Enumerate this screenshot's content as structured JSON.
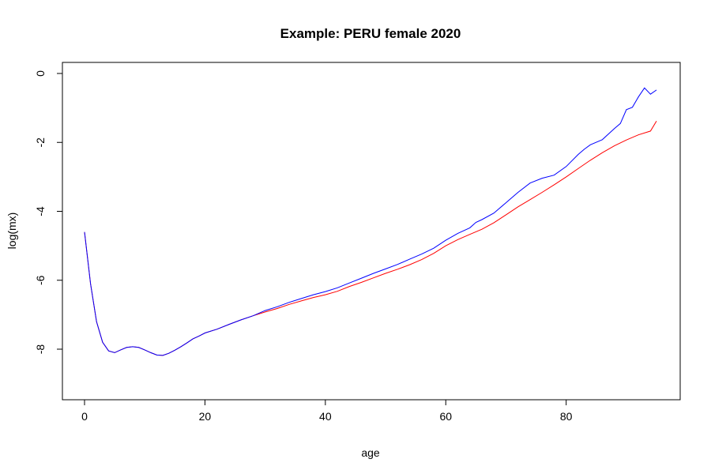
{
  "chart_data": {
    "type": "line",
    "title": "Example: PERU female 2020",
    "xlabel": "age",
    "ylabel": "log(mx)",
    "xlim": [
      0,
      95
    ],
    "ylim": [
      -9.3,
      0.3
    ],
    "xticks": [
      0,
      20,
      40,
      60,
      80
    ],
    "xtick_labels": [
      "0",
      "20",
      "40",
      "60",
      "80"
    ],
    "yticks": [
      0,
      -2,
      -4,
      -6,
      -8
    ],
    "ytick_labels": [
      "0",
      "-2",
      "-4",
      "-6",
      "-8"
    ],
    "grid": false,
    "legend": "none",
    "series": [
      {
        "color": "#ff0000",
        "x": [
          0,
          1,
          2,
          3,
          4,
          5,
          6,
          7,
          8,
          9,
          10,
          11,
          12,
          13,
          14,
          15,
          16,
          17,
          18,
          19,
          20,
          22,
          24,
          26,
          28,
          30,
          32,
          34,
          36,
          38,
          40,
          42,
          44,
          46,
          48,
          50,
          52,
          54,
          56,
          58,
          60,
          62,
          64,
          66,
          68,
          70,
          72,
          74,
          76,
          78,
          80,
          82,
          84,
          86,
          88,
          90,
          92,
          94,
          95
        ],
        "y": [
          -4.6,
          -6.1,
          -7.2,
          -7.8,
          -8.05,
          -8.1,
          -8.02,
          -7.95,
          -7.93,
          -7.95,
          -8.02,
          -8.1,
          -8.17,
          -8.18,
          -8.12,
          -8.03,
          -7.93,
          -7.82,
          -7.7,
          -7.62,
          -7.53,
          -7.42,
          -7.28,
          -7.15,
          -7.03,
          -6.92,
          -6.82,
          -6.7,
          -6.6,
          -6.5,
          -6.42,
          -6.32,
          -6.18,
          -6.06,
          -5.93,
          -5.8,
          -5.68,
          -5.55,
          -5.4,
          -5.22,
          -5.0,
          -4.82,
          -4.67,
          -4.52,
          -4.33,
          -4.1,
          -3.87,
          -3.66,
          -3.45,
          -3.23,
          -3.0,
          -2.76,
          -2.52,
          -2.3,
          -2.1,
          -1.93,
          -1.78,
          -1.67,
          -1.38
        ]
      },
      {
        "color": "#0000ff",
        "x": [
          0,
          1,
          2,
          3,
          4,
          5,
          6,
          7,
          8,
          9,
          10,
          11,
          12,
          13,
          14,
          15,
          16,
          17,
          18,
          19,
          20,
          22,
          24,
          26,
          28,
          30,
          32,
          34,
          36,
          38,
          40,
          42,
          44,
          46,
          48,
          50,
          52,
          54,
          56,
          58,
          60,
          62,
          64,
          65,
          66,
          68,
          70,
          72,
          74,
          76,
          78,
          80,
          82,
          83,
          84,
          86,
          88,
          89,
          90,
          91,
          92,
          93,
          94,
          95
        ],
        "y": [
          -4.6,
          -6.1,
          -7.2,
          -7.8,
          -8.05,
          -8.1,
          -8.02,
          -7.95,
          -7.93,
          -7.95,
          -8.02,
          -8.1,
          -8.17,
          -8.18,
          -8.12,
          -8.03,
          -7.93,
          -7.82,
          -7.7,
          -7.62,
          -7.53,
          -7.42,
          -7.28,
          -7.15,
          -7.03,
          -6.88,
          -6.77,
          -6.64,
          -6.53,
          -6.42,
          -6.33,
          -6.22,
          -6.08,
          -5.94,
          -5.8,
          -5.67,
          -5.54,
          -5.39,
          -5.24,
          -5.07,
          -4.84,
          -4.64,
          -4.48,
          -4.32,
          -4.24,
          -4.05,
          -3.75,
          -3.45,
          -3.18,
          -3.04,
          -2.95,
          -2.7,
          -2.35,
          -2.2,
          -2.07,
          -1.92,
          -1.6,
          -1.45,
          -1.05,
          -0.98,
          -0.68,
          -0.42,
          -0.6,
          -0.48
        ]
      }
    ]
  }
}
